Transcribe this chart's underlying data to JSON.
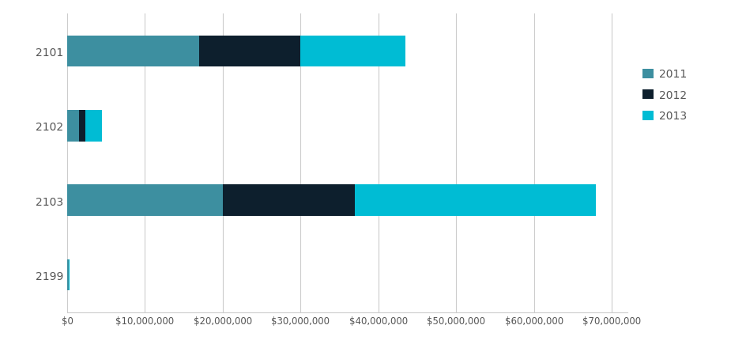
{
  "categories": [
    "2101",
    "2102",
    "2103",
    "2199"
  ],
  "series": {
    "2011": [
      17000000,
      1500000,
      20000000,
      200000
    ],
    "2012": [
      13000000,
      800000,
      17000000,
      0
    ],
    "2013": [
      13500000,
      2200000,
      31000000,
      100000
    ]
  },
  "colors": {
    "2011": "#3d8fa0",
    "2012": "#0d1f2d",
    "2013": "#00bcd4"
  },
  "xlim": [
    0,
    72000000
  ],
  "bar_height": 0.42,
  "background_color": "#ffffff",
  "grid_color": "#cccccc",
  "legend_labels": [
    "2011",
    "2012",
    "2013"
  ],
  "tick_label_color": "#555555",
  "ylabel_color": "#555555",
  "figsize": [
    9.45,
    4.6
  ],
  "dpi": 100
}
